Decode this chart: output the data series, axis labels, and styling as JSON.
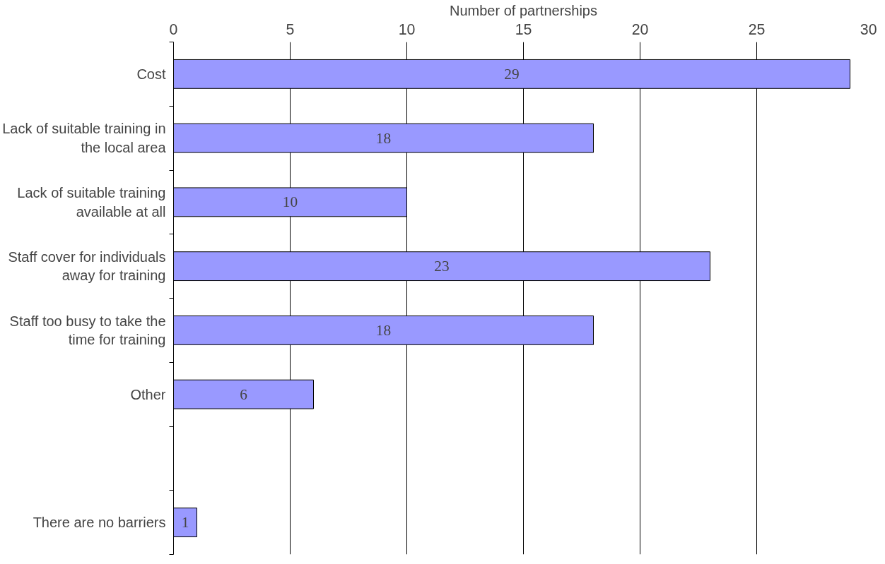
{
  "chart_data": {
    "type": "bar",
    "orientation": "horizontal",
    "xlabel": "Number of partnerships",
    "categories": [
      "Cost",
      "Lack of suitable training in the local area",
      "Lack of suitable training available at all",
      "Staff cover for individuals away for training",
      "Staff too busy to take the time for training",
      "Other",
      null,
      "There are no barriers"
    ],
    "values": [
      29,
      18,
      10,
      23,
      18,
      6,
      null,
      1
    ],
    "color": "#9999ff",
    "xlim": [
      0,
      30
    ],
    "xticks": [
      0,
      5,
      10,
      15,
      20,
      25,
      30
    ],
    "grid": "x",
    "data_labels": true
  }
}
